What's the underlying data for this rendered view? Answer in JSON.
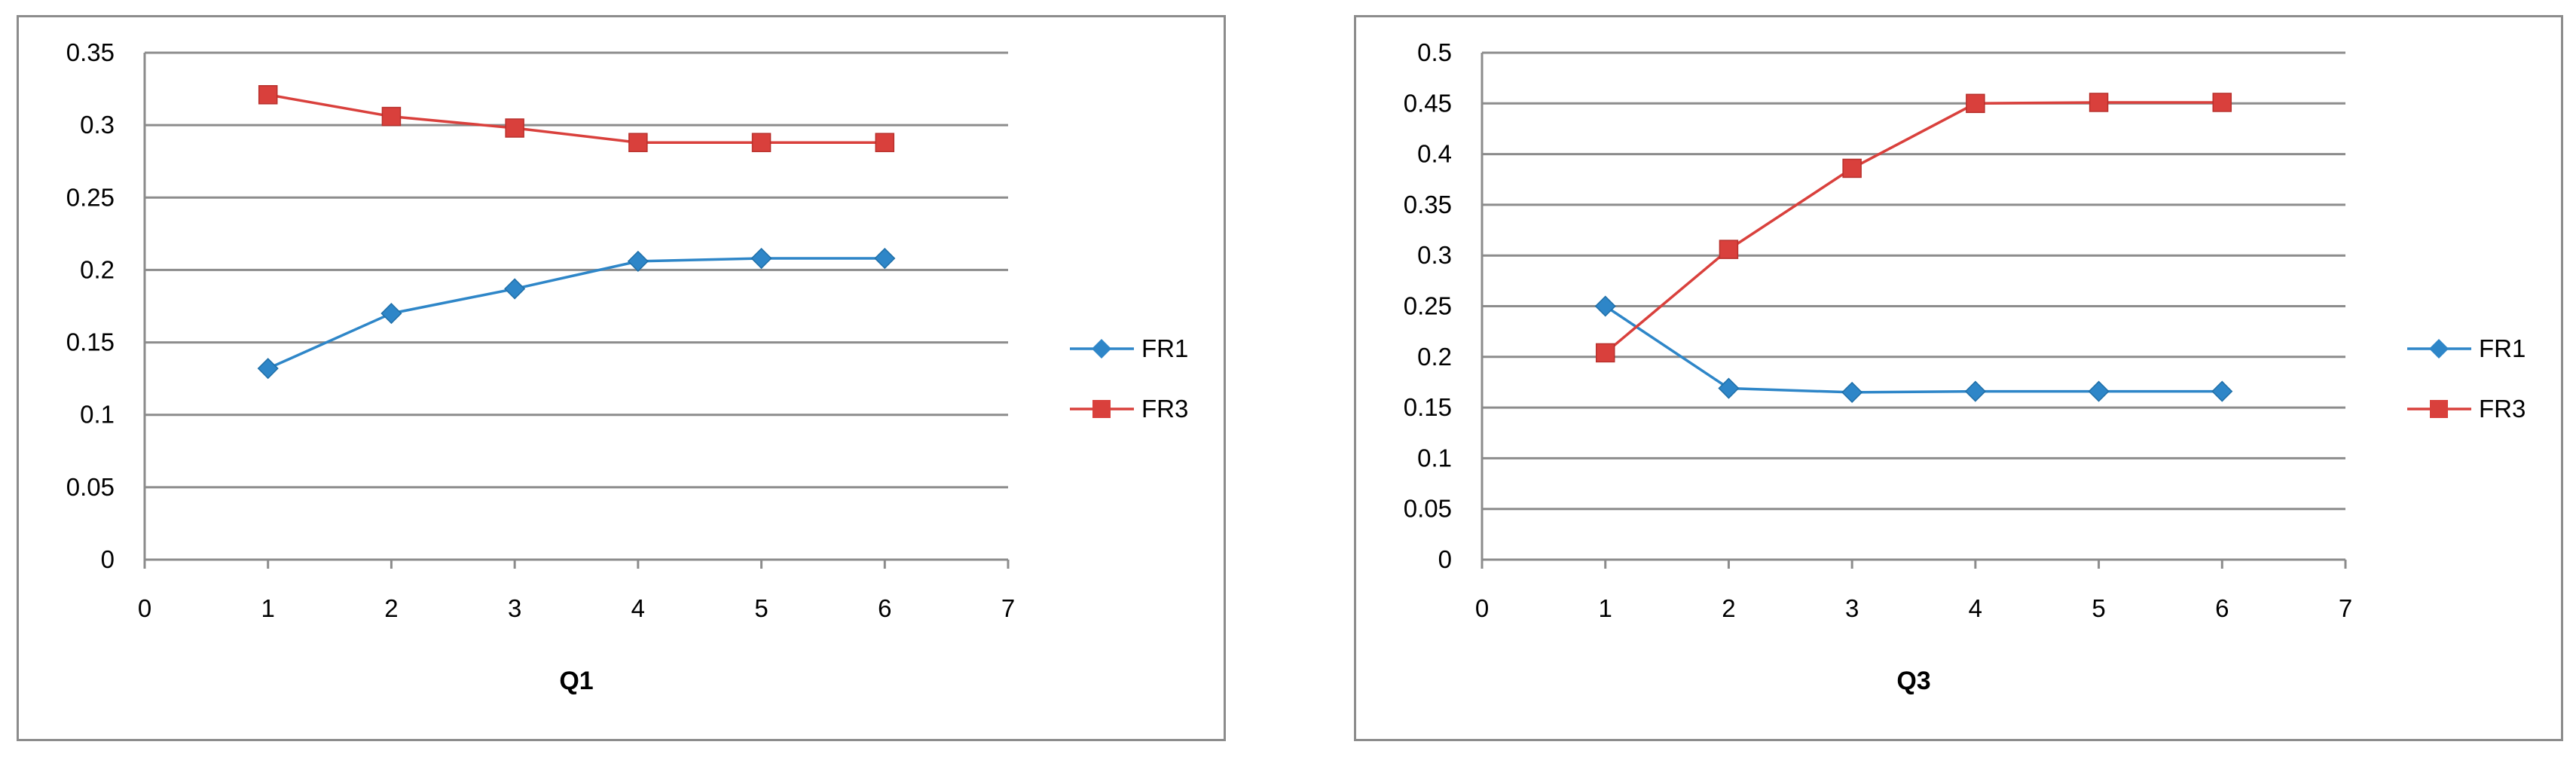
{
  "chart_data": [
    {
      "type": "line",
      "title": "",
      "xlabel": "Q1",
      "ylabel": "",
      "xlim": [
        0,
        7
      ],
      "ylim": [
        0,
        0.35
      ],
      "xticks": [
        0,
        1,
        2,
        3,
        4,
        5,
        6,
        7
      ],
      "yticks": [
        0,
        0.05,
        0.1,
        0.15,
        0.2,
        0.25,
        0.3,
        0.35
      ],
      "grid": "horizontal",
      "legend": "right",
      "x": [
        1,
        2,
        3,
        4,
        5,
        6
      ],
      "series": [
        {
          "name": "FR1",
          "values": [
            0.132,
            0.17,
            0.187,
            0.206,
            0.208,
            0.208
          ],
          "color": "#2e86c8",
          "marker": "diamond"
        },
        {
          "name": "FR3",
          "values": [
            0.321,
            0.306,
            0.298,
            0.288,
            0.288,
            0.288
          ],
          "color": "#d9403c",
          "marker": "square"
        }
      ]
    },
    {
      "type": "line",
      "title": "",
      "xlabel": "Q3",
      "ylabel": "",
      "xlim": [
        0,
        7
      ],
      "ylim": [
        0,
        0.5
      ],
      "xticks": [
        0,
        1,
        2,
        3,
        4,
        5,
        6,
        7
      ],
      "yticks": [
        0,
        0.05,
        0.1,
        0.15,
        0.2,
        0.25,
        0.3,
        0.35,
        0.4,
        0.45,
        0.5
      ],
      "grid": "horizontal",
      "legend": "right",
      "x": [
        1,
        2,
        3,
        4,
        5,
        6
      ],
      "series": [
        {
          "name": "FR1",
          "values": [
            0.25,
            0.169,
            0.165,
            0.166,
            0.166,
            0.166
          ],
          "color": "#2e86c8",
          "marker": "diamond"
        },
        {
          "name": "FR3",
          "values": [
            0.204,
            0.306,
            0.386,
            0.45,
            0.451,
            0.451
          ],
          "color": "#d9403c",
          "marker": "square"
        }
      ]
    }
  ]
}
